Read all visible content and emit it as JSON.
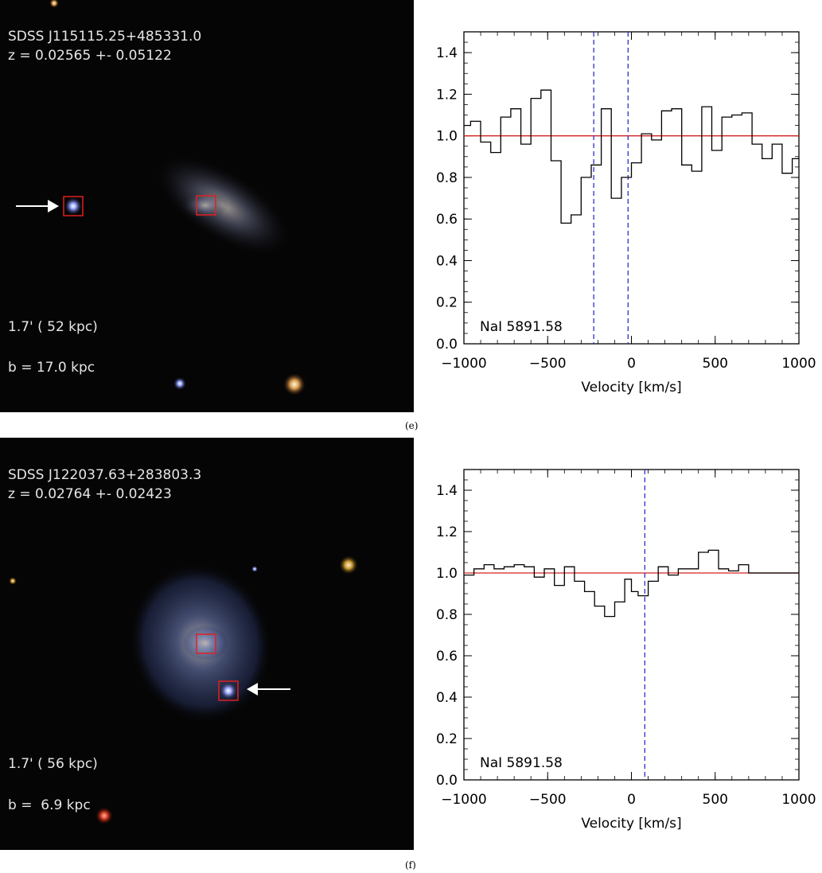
{
  "panels": [
    {
      "caption": "(e)",
      "object_name": "SDSS J115115.25+485331.0",
      "redshift_text": "z = 0.02565 +- 0.05122",
      "scale_text": "1.7' ( 52 kpc)",
      "impact_text": "b = 17.0 kpc",
      "arrow_direction": "right"
    },
    {
      "caption": "(f)",
      "object_name": "SDSS J122037.63+283803.3",
      "redshift_text": "z = 0.02764 +- 0.02423",
      "scale_text": "1.7' ( 56 kpc)",
      "impact_text": "b =  6.9 kpc",
      "arrow_direction": "left"
    }
  ],
  "chart_data": [
    {
      "type": "line",
      "xlabel": "Velocity [km/s]",
      "ylabel": "",
      "xlim": [
        -1000,
        1000
      ],
      "ylim": [
        0.0,
        1.5
      ],
      "xticks": [
        -1000,
        -500,
        0,
        500,
        1000
      ],
      "yticks": [
        0.0,
        0.2,
        0.4,
        0.6,
        0.8,
        1.0,
        1.2,
        1.4
      ],
      "annotation": "NaI 5891.58",
      "continuum": 1.0,
      "continuum_color": "#d42020",
      "marker_color": "#3030cc",
      "vlines": [
        -225,
        -20
      ],
      "series": [
        {
          "step_x": [
            -1000,
            -960,
            -900,
            -840,
            -780,
            -720,
            -660,
            -600,
            -540,
            -480,
            -420,
            -360,
            -300,
            -240,
            -180,
            -120,
            -60,
            0,
            60,
            120,
            180,
            240,
            300,
            360,
            420,
            480,
            540,
            600,
            660,
            720,
            780,
            840,
            900,
            960,
            990
          ],
          "values": [
            1.05,
            1.07,
            0.97,
            0.92,
            1.09,
            1.13,
            0.96,
            1.18,
            1.22,
            0.88,
            0.58,
            0.62,
            0.8,
            0.86,
            1.13,
            0.7,
            0.8,
            0.87,
            1.01,
            0.98,
            1.12,
            1.13,
            0.86,
            0.83,
            1.14,
            0.93,
            1.09,
            1.1,
            1.11,
            0.96,
            0.89,
            0.96,
            0.82,
            0.89
          ]
        }
      ]
    },
    {
      "type": "line",
      "xlabel": "Velocity [km/s]",
      "ylabel": "",
      "xlim": [
        -1000,
        1000
      ],
      "ylim": [
        0.0,
        1.5
      ],
      "xticks": [
        -1000,
        -500,
        0,
        500,
        1000
      ],
      "yticks": [
        0.0,
        0.2,
        0.4,
        0.6,
        0.8,
        1.0,
        1.2,
        1.4
      ],
      "annotation": "NaI 5891.58",
      "continuum": 1.0,
      "continuum_color": "#d42020",
      "marker_color": "#3030cc",
      "vlines": [
        80
      ],
      "series": [
        {
          "step_x": [
            -1000,
            -940,
            -880,
            -820,
            -760,
            -700,
            -640,
            -580,
            -520,
            -460,
            -400,
            -340,
            -280,
            -220,
            -160,
            -100,
            -40,
            0,
            40,
            100,
            160,
            220,
            280,
            340,
            400,
            460,
            520,
            580,
            640,
            700,
            760,
            820,
            880,
            940,
            1000
          ],
          "values": [
            0.99,
            1.02,
            1.04,
            1.02,
            1.03,
            1.04,
            1.03,
            0.98,
            1.02,
            0.94,
            1.03,
            0.96,
            0.91,
            0.84,
            0.79,
            0.86,
            0.97,
            0.91,
            0.89,
            0.96,
            1.03,
            0.99,
            1.02,
            1.02,
            1.1,
            1.11,
            1.02,
            1.01,
            1.04,
            1.0,
            1.0,
            1.0,
            1.0,
            1.0
          ]
        }
      ]
    }
  ]
}
